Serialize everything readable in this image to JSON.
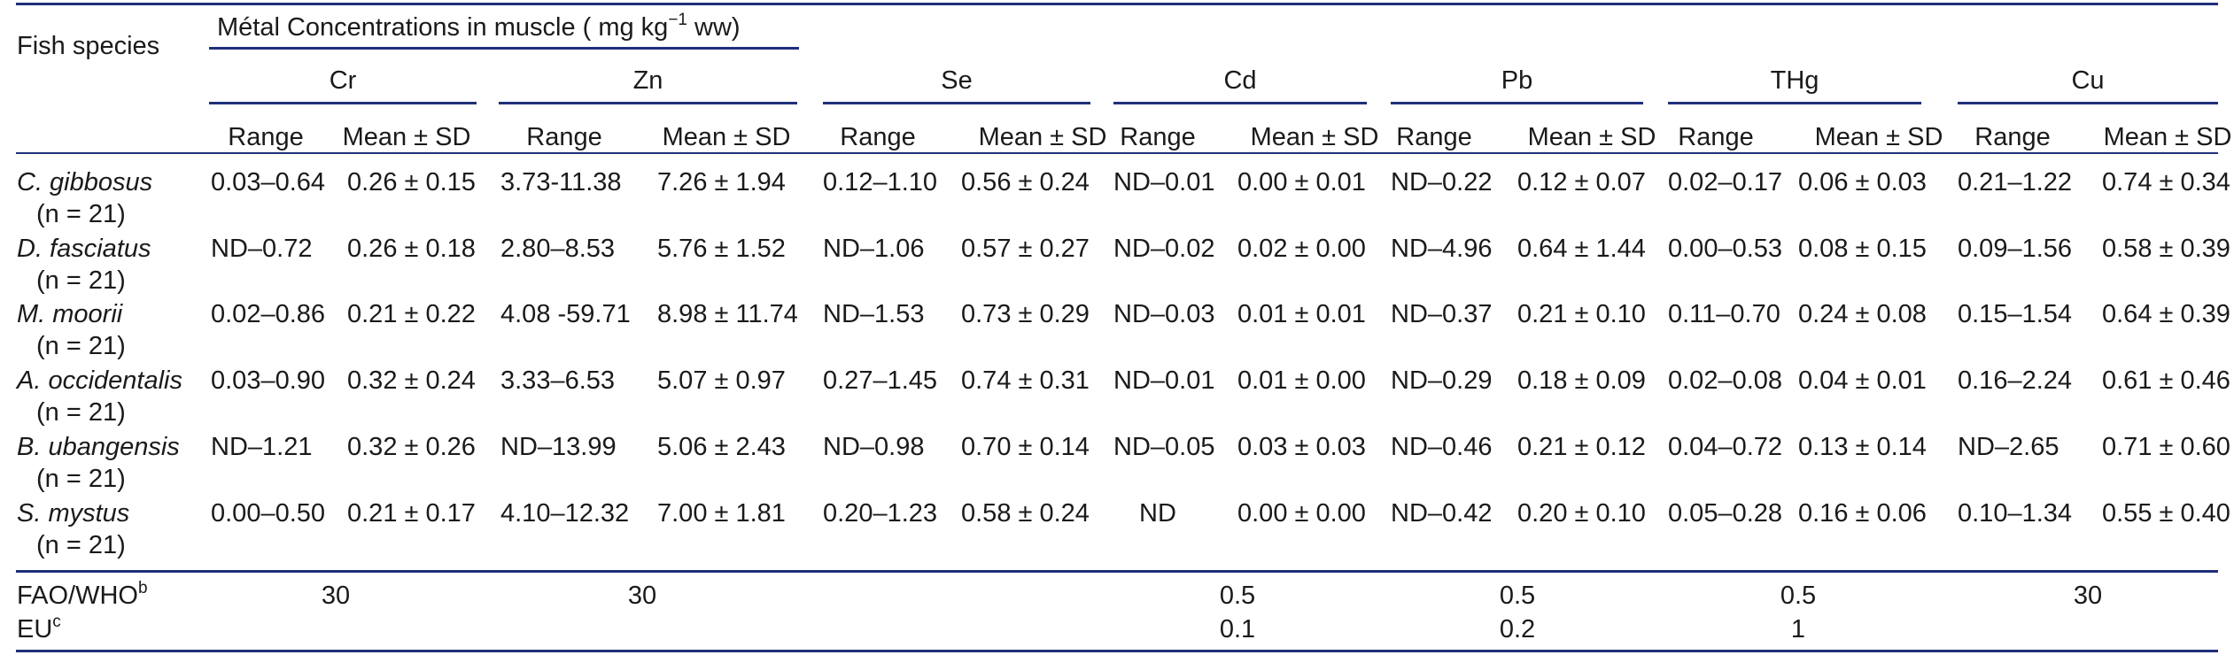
{
  "table": {
    "row_header": "Fish species",
    "group_title": "Métal Concentrations in muscle ( mg kg",
    "group_title_exp": "−1",
    "group_title_tail": " ww)",
    "metals": [
      "Cr",
      "Zn",
      "Se",
      "Cd",
      "Pb",
      "THg",
      "Cu"
    ],
    "subheaders": [
      "Range",
      "Mean ± SD"
    ],
    "rows": [
      {
        "species": "C. gibbosus",
        "n": "(n = 21)",
        "cells": [
          "0.03–0.64",
          "0.26 ± 0.15",
          "3.73-11.38",
          "7.26 ± 1.94",
          "0.12–1.10",
          "0.56 ± 0.24",
          "ND–0.01",
          "0.00 ± 0.01",
          "ND–0.22",
          "0.12 ± 0.07",
          "0.02–0.17",
          "0.06 ± 0.03",
          "0.21–1.22",
          "0.74 ± 0.34"
        ]
      },
      {
        "species": "D. fasciatus",
        "n": "(n = 21)",
        "cells": [
          "ND–0.72",
          "0.26 ± 0.18",
          "2.80–8.53",
          "5.76 ± 1.52",
          "ND–1.06",
          "0.57 ± 0.27",
          "ND–0.02",
          "0.02 ± 0.00",
          "ND–4.96",
          "0.64 ± 1.44",
          "0.00–0.53",
          "0.08 ± 0.15",
          "0.09–1.56",
          "0.58 ± 0.39"
        ]
      },
      {
        "species": "M. moorii",
        "n": "(n = 21)",
        "cells": [
          "0.02–0.86",
          "0.21 ± 0.22",
          "4.08 -59.71",
          "8.98 ± 11.74",
          "ND–1.53",
          "0.73 ± 0.29",
          "ND–0.03",
          "0.01 ± 0.01",
          "ND–0.37",
          "0.21 ± 0.10",
          "0.11–0.70",
          "0.24 ± 0.08",
          "0.15–1.54",
          "0.64 ± 0.39"
        ]
      },
      {
        "species": "A. occidentalis",
        "n": "(n = 21)",
        "cells": [
          "0.03–0.90",
          "0.32 ± 0.24",
          "3.33–6.53",
          "5.07 ± 0.97",
          "0.27–1.45",
          "0.74 ± 0.31",
          "ND–0.01",
          "0.01 ± 0.00",
          "ND–0.29",
          "0.18 ± 0.09",
          "0.02–0.08",
          "0.04 ± 0.01",
          "0.16–2.24",
          "0.61 ± 0.46"
        ]
      },
      {
        "species": "B. ubangensis",
        "n": "(n = 21)",
        "cells": [
          "ND–1.21",
          "0.32 ± 0.26",
          "ND–13.99",
          "5.06 ± 2.43",
          "ND–0.98",
          "0.70 ± 0.14",
          "ND–0.05",
          "0.03 ± 0.03",
          "ND–0.46",
          "0.21 ± 0.12",
          "0.04–0.72",
          "0.13 ± 0.14",
          "ND–2.65",
          "0.71 ± 0.60"
        ]
      },
      {
        "species": "S. mystus",
        "n": "(n = 21)",
        "cells": [
          "0.00–0.50",
          "0.21 ± 0.17",
          "4.10–12.32",
          "7.00 ± 1.81",
          "0.20–1.23",
          "0.58 ± 0.24",
          "ND",
          "0.00 ± 0.00",
          "ND–0.42",
          "0.20 ± 0.10",
          "0.05–0.28",
          "0.16 ± 0.06",
          "0.10–1.34",
          "0.55 ± 0.40"
        ]
      }
    ],
    "guidelines": [
      {
        "label": "FAO/WHO",
        "sup": "b",
        "values": [
          "30",
          "30",
          "",
          "0.5",
          "0.5",
          "0.5",
          "30"
        ]
      },
      {
        "label": "EU",
        "sup": "c",
        "values": [
          "",
          "",
          "",
          "0.1",
          "0.2",
          "1",
          ""
        ]
      }
    ]
  }
}
